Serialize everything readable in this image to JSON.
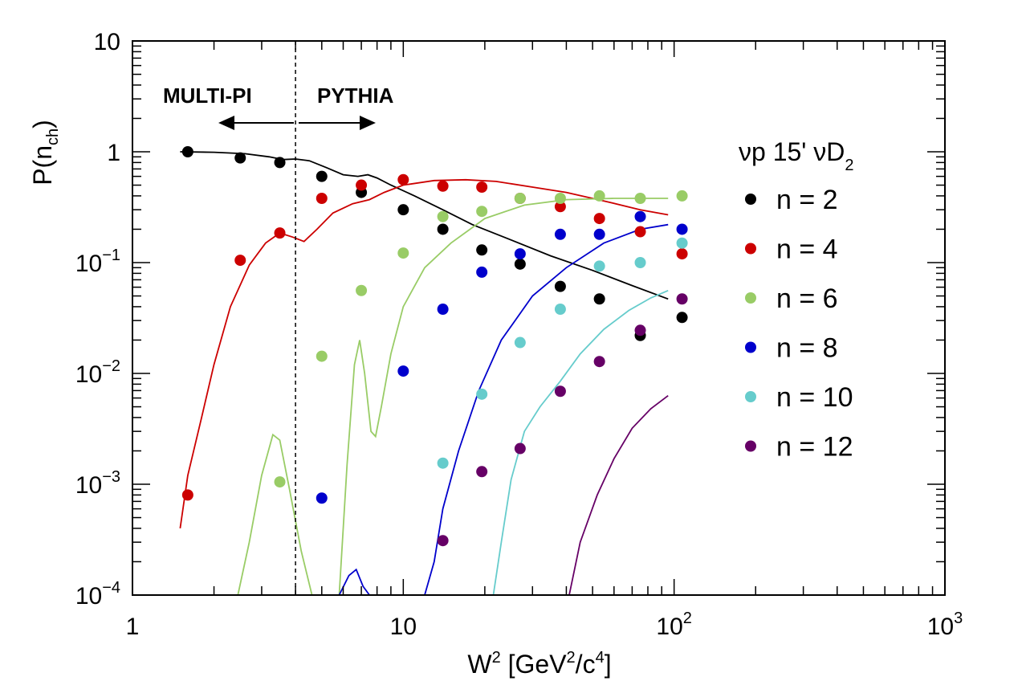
{
  "chart_data": {
    "type": "scatter",
    "xscale": "log",
    "yscale": "log",
    "xlim": [
      1,
      1000
    ],
    "ylim": [
      0.0001,
      10
    ],
    "xlabel": {
      "base": "W",
      "sup1": "2",
      "mid": " [GeV",
      "sup2": "2",
      "mid2": "/c",
      "sup3": "4",
      "end": "]"
    },
    "ylabel": {
      "base": "P(n",
      "sub": "ch",
      "end": ")"
    },
    "x_ticks": [
      {
        "value": 1,
        "label": "1"
      },
      {
        "value": 10,
        "label": "10"
      },
      {
        "value": 100,
        "base": "10",
        "exp": "2"
      },
      {
        "value": 1000,
        "base": "10",
        "exp": "3"
      }
    ],
    "y_ticks": [
      {
        "value": 10,
        "label": "10"
      },
      {
        "value": 1,
        "label": "1"
      },
      {
        "value": 0.1,
        "base": "10",
        "exp": "−1"
      },
      {
        "value": 0.01,
        "base": "10",
        "exp": "−2"
      },
      {
        "value": 0.001,
        "base": "10",
        "exp": "−3"
      },
      {
        "value": 0.0001,
        "base": "10",
        "exp": "−4"
      }
    ],
    "boundary": {
      "x": 4.0,
      "left_label": "MULTI-PI",
      "right_label": "PYTHIA"
    },
    "legend": {
      "title_parts": [
        "νp 15' νD",
        "2"
      ],
      "position": "right"
    },
    "series": [
      {
        "name": "n = 2",
        "color": "#000000",
        "points": [
          [
            1.6,
            1.0
          ],
          [
            2.5,
            0.88
          ],
          [
            3.5,
            0.8
          ],
          [
            5.0,
            0.6
          ],
          [
            7.0,
            0.43
          ],
          [
            10.0,
            0.3
          ],
          [
            14.0,
            0.2
          ],
          [
            19.5,
            0.13
          ],
          [
            27.0,
            0.097
          ],
          [
            38.0,
            0.061
          ],
          [
            53.0,
            0.047
          ],
          [
            75.0,
            0.022
          ],
          [
            107.0,
            0.032
          ]
        ],
        "curve": [
          [
            1.5,
            1.0
          ],
          [
            2.0,
            0.99
          ],
          [
            2.6,
            0.96
          ],
          [
            3.2,
            0.9
          ],
          [
            3.6,
            0.85
          ],
          [
            4.0,
            0.86
          ],
          [
            4.5,
            0.83
          ],
          [
            5.2,
            0.72
          ],
          [
            6.0,
            0.62
          ],
          [
            6.8,
            0.6
          ],
          [
            7.4,
            0.62
          ],
          [
            8.0,
            0.58
          ],
          [
            9.0,
            0.5
          ],
          [
            11.0,
            0.4
          ],
          [
            14.0,
            0.3
          ],
          [
            18.0,
            0.22
          ],
          [
            25.0,
            0.16
          ],
          [
            35.0,
            0.115
          ],
          [
            50.0,
            0.085
          ],
          [
            70.0,
            0.062
          ],
          [
            95.0,
            0.047
          ]
        ]
      },
      {
        "name": "n = 4",
        "color": "#cc0000",
        "points": [
          [
            1.6,
            0.0008
          ],
          [
            2.5,
            0.105
          ],
          [
            3.5,
            0.185
          ],
          [
            5.0,
            0.38
          ],
          [
            7.0,
            0.5
          ],
          [
            10.0,
            0.56
          ],
          [
            14.0,
            0.49
          ],
          [
            19.5,
            0.48
          ],
          [
            27.0,
            0.38
          ],
          [
            38.0,
            0.32
          ],
          [
            53.0,
            0.25
          ],
          [
            75.0,
            0.19
          ],
          [
            107.0,
            0.12
          ]
        ],
        "curve": [
          [
            1.5,
            0.0004
          ],
          [
            1.6,
            0.0012
          ],
          [
            1.8,
            0.004
          ],
          [
            2.0,
            0.012
          ],
          [
            2.3,
            0.04
          ],
          [
            2.7,
            0.095
          ],
          [
            3.1,
            0.15
          ],
          [
            3.5,
            0.185
          ],
          [
            3.9,
            0.17
          ],
          [
            4.3,
            0.155
          ],
          [
            4.8,
            0.2
          ],
          [
            5.5,
            0.28
          ],
          [
            6.5,
            0.34
          ],
          [
            7.5,
            0.37
          ],
          [
            8.5,
            0.43
          ],
          [
            10.0,
            0.5
          ],
          [
            13.0,
            0.55
          ],
          [
            17.0,
            0.56
          ],
          [
            22.0,
            0.54
          ],
          [
            30.0,
            0.48
          ],
          [
            40.0,
            0.43
          ],
          [
            55.0,
            0.36
          ],
          [
            75.0,
            0.3
          ],
          [
            95.0,
            0.27
          ]
        ]
      },
      {
        "name": "n = 6",
        "color": "#99cc66",
        "points": [
          [
            3.5,
            0.00105
          ],
          [
            5.0,
            0.0143
          ],
          [
            7.0,
            0.056
          ],
          [
            10.0,
            0.122
          ],
          [
            14.0,
            0.26
          ],
          [
            19.5,
            0.29
          ],
          [
            27.0,
            0.38
          ],
          [
            38.0,
            0.38
          ],
          [
            53.0,
            0.4
          ],
          [
            75.0,
            0.38
          ],
          [
            107.0,
            0.4
          ]
        ],
        "curve": [
          [
            2.45,
            0.0001
          ],
          [
            2.7,
            0.0003
          ],
          [
            3.0,
            0.0012
          ],
          [
            3.3,
            0.0028
          ],
          [
            3.5,
            0.0025
          ],
          [
            3.8,
            0.0009
          ],
          [
            4.2,
            0.00025
          ],
          [
            4.6,
            0.0001
          ],
          [
            5.8,
            0.0001
          ],
          [
            6.2,
            0.0015
          ],
          [
            6.6,
            0.012
          ],
          [
            6.9,
            0.02
          ],
          [
            7.2,
            0.01
          ],
          [
            7.6,
            0.003
          ],
          [
            7.9,
            0.0027
          ],
          [
            8.3,
            0.005
          ],
          [
            9.0,
            0.015
          ],
          [
            10.0,
            0.04
          ],
          [
            12.0,
            0.09
          ],
          [
            15.0,
            0.15
          ],
          [
            20.0,
            0.25
          ],
          [
            28.0,
            0.33
          ],
          [
            40.0,
            0.37
          ],
          [
            60.0,
            0.38
          ],
          [
            95.0,
            0.38
          ]
        ]
      },
      {
        "name": "n = 8",
        "color": "#0000cc",
        "points": [
          [
            5.0,
            0.00075
          ],
          [
            10.0,
            0.0105
          ],
          [
            14.0,
            0.038
          ],
          [
            19.5,
            0.082
          ],
          [
            27.0,
            0.12
          ],
          [
            38.0,
            0.18
          ],
          [
            53.0,
            0.18
          ],
          [
            75.0,
            0.26
          ],
          [
            107.0,
            0.2
          ]
        ],
        "curve": [
          [
            5.8,
            0.0001
          ],
          [
            6.3,
            0.00015
          ],
          [
            6.7,
            0.00017
          ],
          [
            7.1,
            0.00012
          ],
          [
            7.5,
            0.0001
          ],
          [
            12.0,
            0.0001
          ],
          [
            13.0,
            0.0002
          ],
          [
            14.0,
            0.0006
          ],
          [
            16.0,
            0.002
          ],
          [
            19.0,
            0.007
          ],
          [
            23.0,
            0.02
          ],
          [
            30.0,
            0.05
          ],
          [
            40.0,
            0.09
          ],
          [
            55.0,
            0.15
          ],
          [
            75.0,
            0.2
          ],
          [
            95.0,
            0.22
          ]
        ]
      },
      {
        "name": "n = 10",
        "color": "#66cccc",
        "points": [
          [
            14.0,
            0.00155
          ],
          [
            19.5,
            0.0065
          ],
          [
            27.0,
            0.019
          ],
          [
            38.0,
            0.038
          ],
          [
            53.0,
            0.093
          ],
          [
            75.0,
            0.1
          ],
          [
            107.0,
            0.15
          ]
        ],
        "curve": [
          [
            21.5,
            0.0001
          ],
          [
            23.0,
            0.0003
          ],
          [
            25.0,
            0.0011
          ],
          [
            28.0,
            0.003
          ],
          [
            32.0,
            0.005
          ],
          [
            38.0,
            0.0085
          ],
          [
            45.0,
            0.015
          ],
          [
            55.0,
            0.025
          ],
          [
            68.0,
            0.037
          ],
          [
            82.0,
            0.048
          ],
          [
            95.0,
            0.056
          ]
        ]
      },
      {
        "name": "n = 12",
        "color": "#660066",
        "points": [
          [
            14.0,
            0.00031
          ],
          [
            19.5,
            0.0013
          ],
          [
            27.0,
            0.0021
          ],
          [
            38.0,
            0.0069
          ],
          [
            53.0,
            0.0128
          ],
          [
            75.0,
            0.0245
          ],
          [
            107.0,
            0.047
          ]
        ],
        "curve": [
          [
            41.0,
            0.0001
          ],
          [
            45.0,
            0.0003
          ],
          [
            52.0,
            0.0008
          ],
          [
            60.0,
            0.0017
          ],
          [
            70.0,
            0.0032
          ],
          [
            82.0,
            0.0048
          ],
          [
            95.0,
            0.0063
          ]
        ]
      }
    ]
  }
}
